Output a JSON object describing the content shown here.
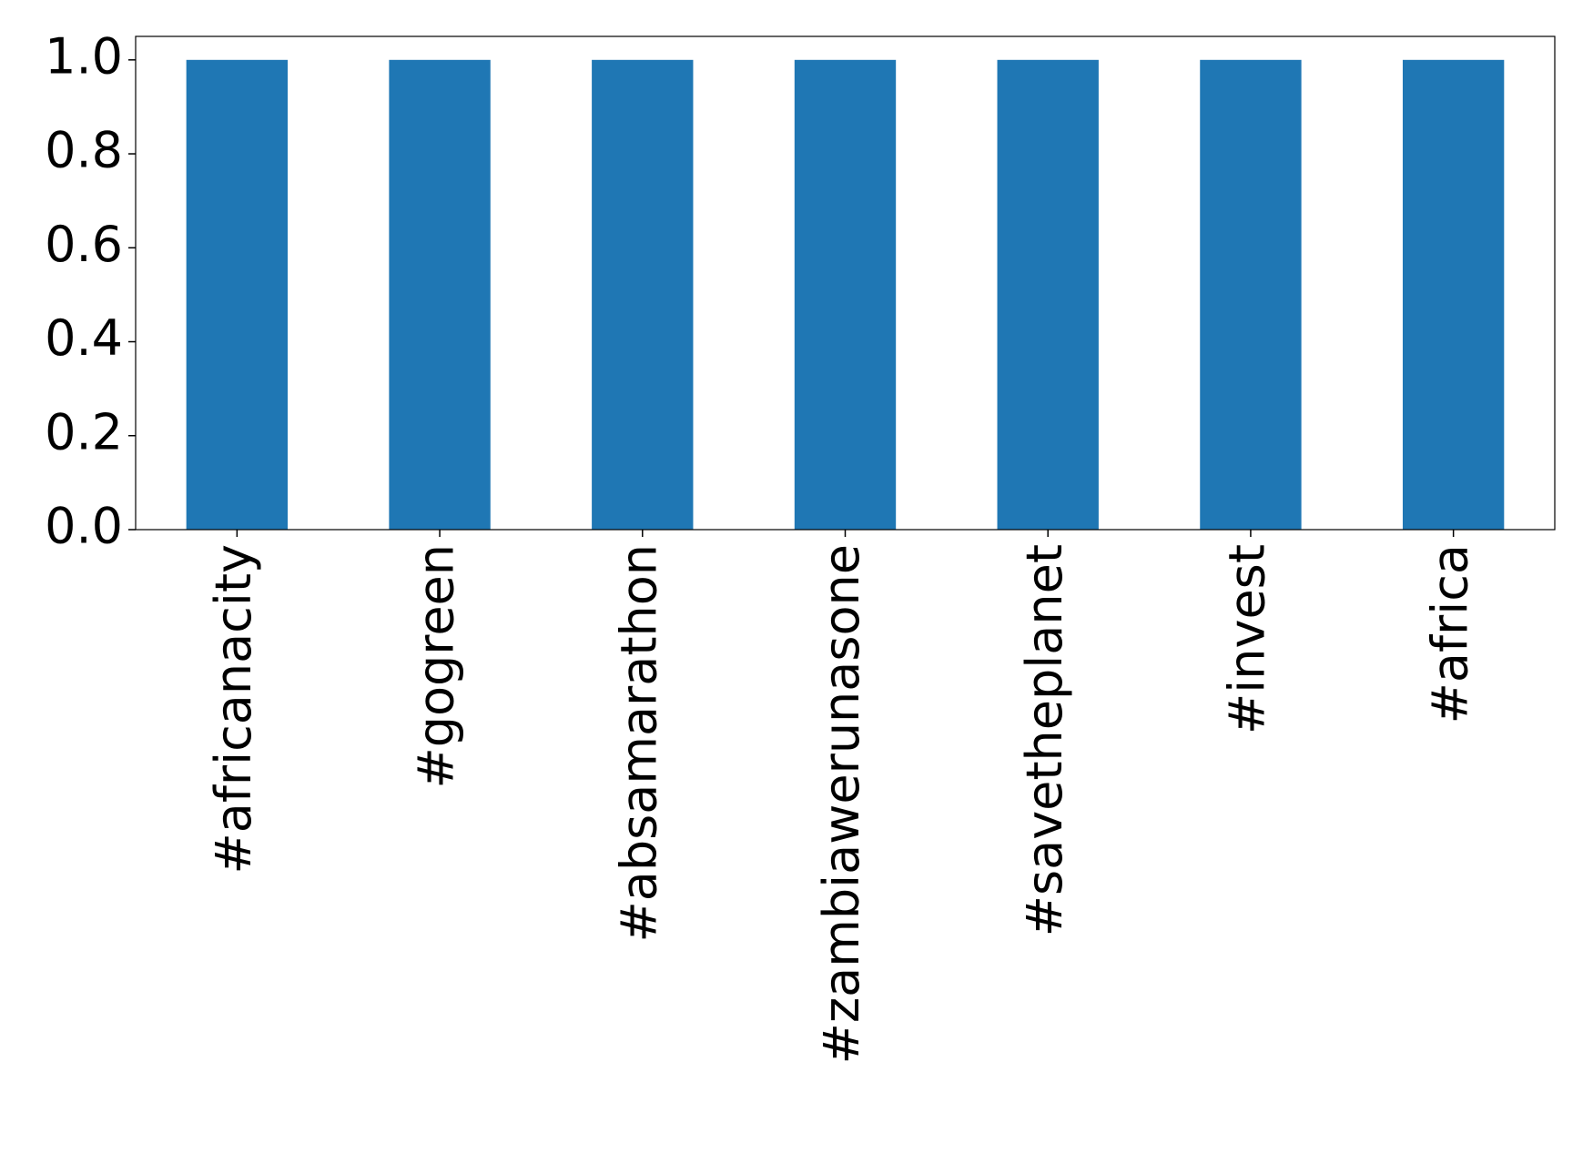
{
  "chart_data": {
    "type": "bar",
    "categories": [
      "#africanacity",
      "#gogreen",
      "#absamarathon",
      "#zambiawerunasone",
      "#savetheplanet",
      "#invest",
      "#africa"
    ],
    "values": [
      1,
      1,
      1,
      1,
      1,
      1,
      1
    ],
    "color": "#1f77b4",
    "ylim": [
      0,
      1.05
    ],
    "yticks": [
      {
        "value": 0,
        "label": "0.0"
      },
      0.2,
      0.4,
      0.6,
      0.8,
      {
        "value": 1,
        "label": "1.0"
      }
    ],
    "grid": false
  }
}
